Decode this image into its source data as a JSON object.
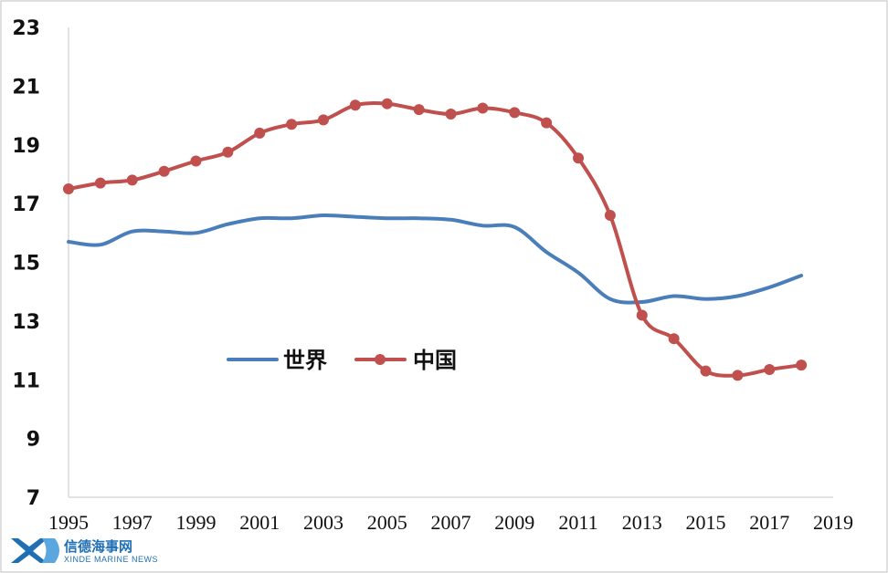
{
  "chart_data": {
    "type": "line",
    "x_ticks": [
      1995,
      1997,
      1999,
      2001,
      2003,
      2005,
      2007,
      2009,
      2011,
      2013,
      2015,
      2017,
      2019
    ],
    "y_ticks": [
      7,
      9,
      11,
      13,
      15,
      17,
      19,
      21,
      23
    ],
    "xlim": [
      1995,
      2019
    ],
    "ylim": [
      7,
      23
    ],
    "title": "",
    "xlabel": "",
    "ylabel": "",
    "grid": false,
    "legend_position": "center-left",
    "series": [
      {
        "name": "世界",
        "color": "#4a7ebb",
        "markers": false,
        "x": [
          1995,
          1996,
          1997,
          1998,
          1999,
          2000,
          2001,
          2002,
          2003,
          2004,
          2005,
          2006,
          2007,
          2008,
          2009,
          2010,
          2011,
          2012,
          2013,
          2014,
          2015,
          2016,
          2017,
          2018
        ],
        "y": [
          15.7,
          15.6,
          16.05,
          16.05,
          16.0,
          16.3,
          16.5,
          16.5,
          16.6,
          16.55,
          16.5,
          16.5,
          16.45,
          16.25,
          16.2,
          15.35,
          14.65,
          13.75,
          13.65,
          13.85,
          13.75,
          13.85,
          14.15,
          14.55
        ]
      },
      {
        "name": "中国",
        "color": "#c0504d",
        "markers": true,
        "x": [
          1995,
          1996,
          1997,
          1998,
          1999,
          2000,
          2001,
          2002,
          2003,
          2004,
          2005,
          2006,
          2007,
          2008,
          2009,
          2010,
          2011,
          2012,
          2013,
          2014,
          2015,
          2016,
          2017,
          2018
        ],
        "y": [
          17.5,
          17.7,
          17.8,
          18.1,
          18.45,
          18.75,
          19.4,
          19.7,
          19.85,
          20.35,
          20.4,
          20.2,
          20.05,
          20.25,
          20.1,
          19.75,
          18.55,
          16.6,
          13.2,
          12.4,
          11.3,
          11.15,
          11.35,
          11.5
        ]
      }
    ]
  },
  "watermark": {
    "logo": "XD",
    "text_cn": "信德海事网",
    "text_en": "XINDE MARINE NEWS"
  }
}
